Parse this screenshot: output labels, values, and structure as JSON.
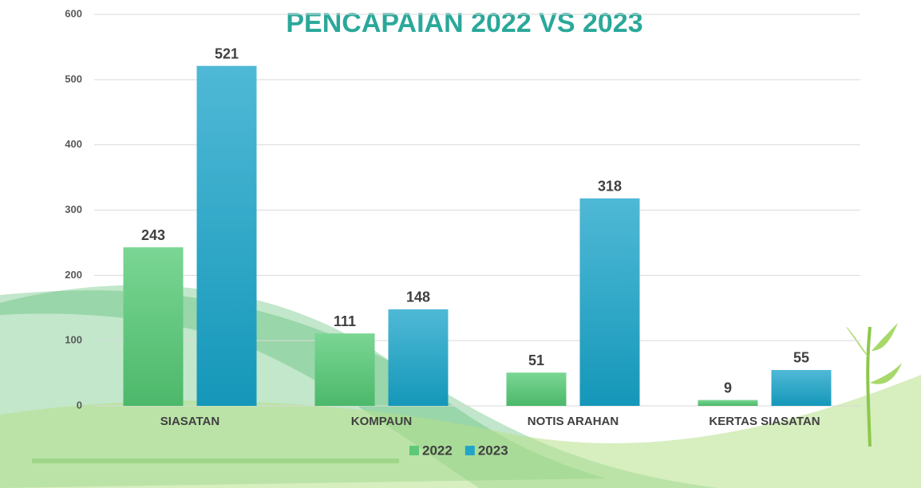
{
  "chart_data": {
    "type": "bar",
    "title": "PENCAPAIAN 2022 VS 2023",
    "categories": [
      "SIASATAN",
      "KOMPAUN",
      "NOTIS ARAHAN",
      "KERTAS SIASATAN"
    ],
    "series": [
      {
        "name": "2022",
        "color": "#5cc878",
        "values": [
          243,
          111,
          51,
          9
        ]
      },
      {
        "name": "2023",
        "color": "#22a5c8",
        "values": [
          521,
          148,
          318,
          55
        ]
      }
    ],
    "ylim": [
      0,
      600
    ],
    "yticks": [
      0,
      100,
      200,
      300,
      400,
      500,
      600
    ],
    "grid": true,
    "legend": "bottom"
  }
}
